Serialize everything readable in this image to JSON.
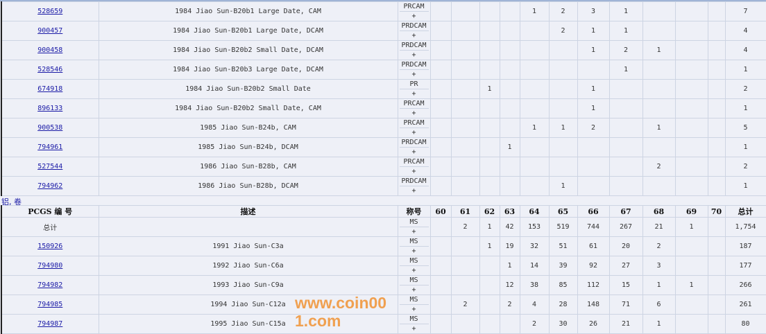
{
  "grade_columns": [
    "60",
    "61",
    "62",
    "63",
    "64",
    "65",
    "66",
    "67",
    "68",
    "69",
    "70"
  ],
  "table1": {
    "rows": [
      {
        "id": "528659",
        "desc": "1984 Jiao Sun-B20b1 Large Date, CAM",
        "grade": "PRCAM",
        "plus": "+",
        "counts": [
          "",
          "",
          "",
          "",
          "1",
          "2",
          "3",
          "1",
          "",
          "",
          ""
        ],
        "total": "7"
      },
      {
        "id": "900457",
        "desc": "1984 Jiao Sun-B20b1 Large Date, DCAM",
        "grade": "PRDCAM",
        "plus": "+",
        "counts": [
          "",
          "",
          "",
          "",
          "",
          "2",
          "1",
          "1",
          "",
          "",
          ""
        ],
        "total": "4"
      },
      {
        "id": "900458",
        "desc": "1984 Jiao Sun-B20b2 Small Date, DCAM",
        "grade": "PRDCAM",
        "plus": "+",
        "counts": [
          "",
          "",
          "",
          "",
          "",
          "",
          "1",
          "2",
          "1",
          "",
          ""
        ],
        "total": "4"
      },
      {
        "id": "528546",
        "desc": "1984 Jiao Sun-B20b3 Large Date, DCAM",
        "grade": "PRDCAM",
        "plus": "+",
        "counts": [
          "",
          "",
          "",
          "",
          "",
          "",
          "",
          "1",
          "",
          "",
          ""
        ],
        "total": "1"
      },
      {
        "id": "674918",
        "desc": "1984 Jiao Sun-B20b2 Small Date",
        "grade": "PR",
        "plus": "+",
        "counts": [
          "",
          "",
          "1",
          "",
          "",
          "",
          "1",
          "",
          "",
          "",
          ""
        ],
        "total": "2"
      },
      {
        "id": "896133",
        "desc": "1984 Jiao Sun-B20b2 Small Date, CAM",
        "grade": "PRCAM",
        "plus": "+",
        "counts": [
          "",
          "",
          "",
          "",
          "",
          "",
          "1",
          "",
          "",
          "",
          ""
        ],
        "total": "1"
      },
      {
        "id": "900538",
        "desc": "1985 Jiao Sun-B24b, CAM",
        "grade": "PRCAM",
        "plus": "+",
        "counts": [
          "",
          "",
          "",
          "",
          "1",
          "1",
          "2",
          "",
          "1",
          "",
          ""
        ],
        "total": "5"
      },
      {
        "id": "794961",
        "desc": "1985 Jiao Sun-B24b, DCAM",
        "grade": "PRDCAM",
        "plus": "+",
        "counts": [
          "",
          "",
          "",
          "1",
          "",
          "",
          "",
          "",
          "",
          "",
          ""
        ],
        "total": "1"
      },
      {
        "id": "527544",
        "desc": "1986 Jiao Sun-B28b, CAM",
        "grade": "PRCAM",
        "plus": "+",
        "counts": [
          "",
          "",
          "",
          "",
          "",
          "",
          "",
          "",
          "2",
          "",
          ""
        ],
        "total": "2"
      },
      {
        "id": "794962",
        "desc": "1986 Jiao Sun-B28b, DCAM",
        "grade": "PRDCAM",
        "plus": "+",
        "counts": [
          "",
          "",
          "",
          "",
          "",
          "1",
          "",
          "",
          "",
          "",
          ""
        ],
        "total": "1"
      }
    ]
  },
  "category_link": "铝, 卷",
  "table2": {
    "headers": {
      "id": "PCGS 编 号",
      "desc": "描述",
      "grade": "称号",
      "total": "总计"
    },
    "summary": {
      "label": "总计",
      "grade": "MS",
      "plus": "+",
      "counts": [
        "",
        "2",
        "1",
        "42",
        "153",
        "519",
        "744",
        "267",
        "21",
        "1",
        ""
      ],
      "total": "1,754"
    },
    "rows": [
      {
        "id": "150926",
        "desc": "1991 Jiao Sun-C3a",
        "grade": "MS",
        "plus": "+",
        "counts": [
          "",
          "",
          "1",
          "19",
          "32",
          "51",
          "61",
          "20",
          "2",
          "",
          ""
        ],
        "total": "187"
      },
      {
        "id": "794980",
        "desc": "1992 Jiao Sun-C6a",
        "grade": "MS",
        "plus": "+",
        "counts": [
          "",
          "",
          "",
          "1",
          "14",
          "39",
          "92",
          "27",
          "3",
          "",
          ""
        ],
        "total": "177"
      },
      {
        "id": "794982",
        "desc": "1993 Jiao Sun-C9a",
        "grade": "MS",
        "plus": "+",
        "counts": [
          "",
          "",
          "",
          "12",
          "38",
          "85",
          "112",
          "15",
          "1",
          "1",
          ""
        ],
        "total": "266"
      },
      {
        "id": "794985",
        "desc": "1994 Jiao Sun-C12a",
        "grade": "MS",
        "plus": "+",
        "counts": [
          "",
          "2",
          "",
          "2",
          "4",
          "28",
          "148",
          "71",
          "6",
          "",
          ""
        ],
        "total": "261"
      },
      {
        "id": "794987",
        "desc": "1995 Jiao Sun-C15a",
        "grade": "MS",
        "plus": "+",
        "counts": [
          "",
          "",
          "",
          "",
          "2",
          "30",
          "26",
          "21",
          "1",
          "",
          ""
        ],
        "total": "80"
      }
    ]
  },
  "watermark": "www.coin001.com",
  "colors": {
    "link": "#1a1aa6",
    "background": "#eef0f7",
    "grid": "#cdd4e3",
    "watermark": "#f0a050"
  }
}
